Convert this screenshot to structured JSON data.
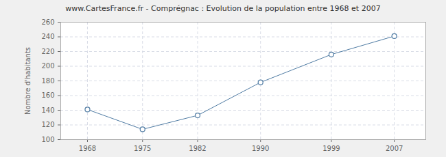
{
  "chart_data": {
    "type": "line",
    "title": "www.CartesFrance.fr - Comprégnac : Evolution de la population entre 1968 et 2007",
    "y_label": "Nombre d'habitants",
    "x": [
      1968,
      1975,
      1982,
      1990,
      1999,
      2007
    ],
    "values": [
      141,
      114,
      133,
      178,
      216,
      241
    ],
    "color": "#4f7ba3",
    "marker": "circle",
    "xlim": [
      1964.6,
      2011
    ],
    "xticks": [
      1968,
      1975,
      1982,
      1990,
      1999,
      2007
    ],
    "ylim": [
      100,
      260
    ],
    "yticks": [
      100,
      120,
      140,
      160,
      180,
      200,
      220,
      240,
      260
    ],
    "grid": true
  }
}
